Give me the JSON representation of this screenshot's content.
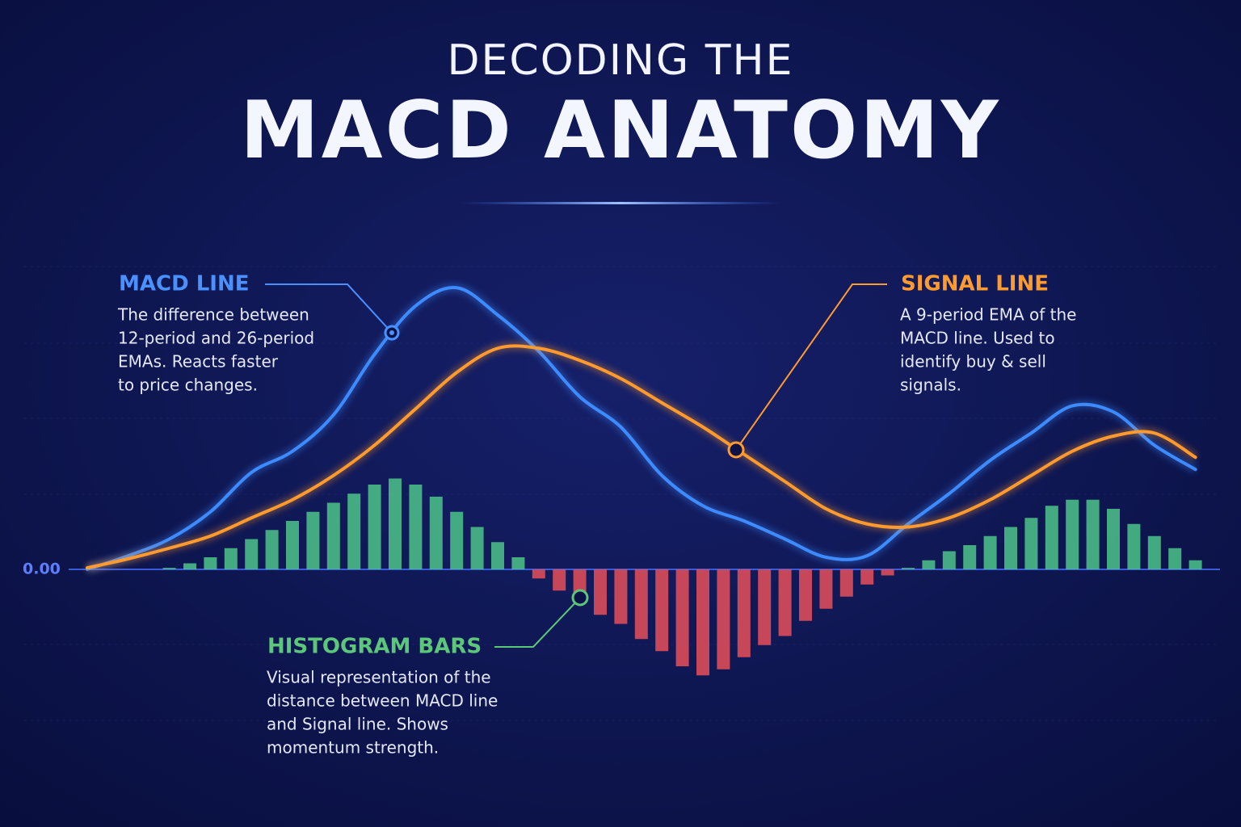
{
  "chart_data": {
    "type": "macd",
    "title": "DECODING THE",
    "subtitle": "MACD ANATOMY",
    "xlim": [
      -4,
      51
    ],
    "ylim": [
      -0.8,
      1.0
    ],
    "yticks": [
      {
        "value": 0,
        "label": "0.00"
      }
    ],
    "histogram": {
      "x": [
        0,
        1,
        2,
        3,
        4,
        5,
        6,
        7,
        8,
        9,
        10,
        11,
        12,
        13,
        14,
        15,
        16,
        17,
        18,
        19,
        20,
        21,
        22,
        23,
        24,
        25,
        26,
        27,
        28,
        29,
        30,
        31,
        32,
        33,
        34,
        35,
        36,
        37,
        38,
        39,
        40,
        41,
        42,
        43,
        44,
        45,
        46,
        47,
        48,
        49,
        50
      ],
      "values": [
        0.005,
        0.02,
        0.04,
        0.07,
        0.1,
        0.13,
        0.16,
        0.19,
        0.22,
        0.25,
        0.28,
        0.3,
        0.28,
        0.24,
        0.19,
        0.14,
        0.09,
        0.04,
        -0.03,
        -0.07,
        -0.09,
        -0.15,
        -0.18,
        -0.23,
        -0.27,
        -0.32,
        -0.35,
        -0.33,
        -0.29,
        -0.25,
        -0.22,
        -0.17,
        -0.13,
        -0.09,
        -0.05,
        -0.02,
        0.005,
        0.03,
        0.06,
        0.08,
        0.11,
        0.14,
        0.17,
        0.21,
        0.23,
        0.23,
        0.2,
        0.15,
        0.11,
        0.07,
        0.03
      ],
      "positive_color": "#4cc48a",
      "negative_color": "#e8505b"
    },
    "x": [
      -4,
      -2,
      0,
      2,
      4,
      6,
      8,
      10,
      12,
      14,
      16,
      18,
      20,
      22,
      24,
      26,
      28,
      30,
      32,
      34,
      36,
      38,
      40,
      42,
      44,
      46,
      48,
      50
    ],
    "series": [
      {
        "color": "#3d8bff",
        "values": [
          0,
          0.045,
          0.1,
          0.19,
          0.32,
          0.39,
          0.51,
          0.71,
          0.87,
          0.93,
          0.84,
          0.72,
          0.57,
          0.47,
          0.31,
          0.21,
          0.16,
          0.1,
          0.04,
          0.045,
          0.15,
          0.25,
          0.36,
          0.45,
          0.54,
          0.52,
          0.41,
          0.33
        ]
      },
      {
        "color": "#ff9a2e",
        "values": [
          0.005,
          0.035,
          0.07,
          0.11,
          0.17,
          0.23,
          0.31,
          0.41,
          0.53,
          0.65,
          0.73,
          0.73,
          0.69,
          0.63,
          0.55,
          0.47,
          0.38,
          0.29,
          0.2,
          0.15,
          0.14,
          0.17,
          0.23,
          0.31,
          0.39,
          0.44,
          0.45,
          0.37
        ]
      }
    ],
    "annotations": [
      {
        "title": "MACD LINE",
        "color": "#4a90ff",
        "lines": [
          "The difference between",
          "12-period and 26-period",
          "EMAs. Reacts faster",
          "to price changes."
        ]
      },
      {
        "title": "SIGNAL LINE",
        "color": "#ff9a2e",
        "lines": [
          "A 9-period EMA of the",
          "MACD line. Used to",
          "identify buy & sell",
          "signals."
        ]
      },
      {
        "title": "HISTOGRAM BARS",
        "color": "#5cc77a",
        "lines": [
          "Visual representation of the",
          "distance between MACD line",
          "and Signal line. Shows",
          "momentum strength."
        ]
      }
    ]
  }
}
